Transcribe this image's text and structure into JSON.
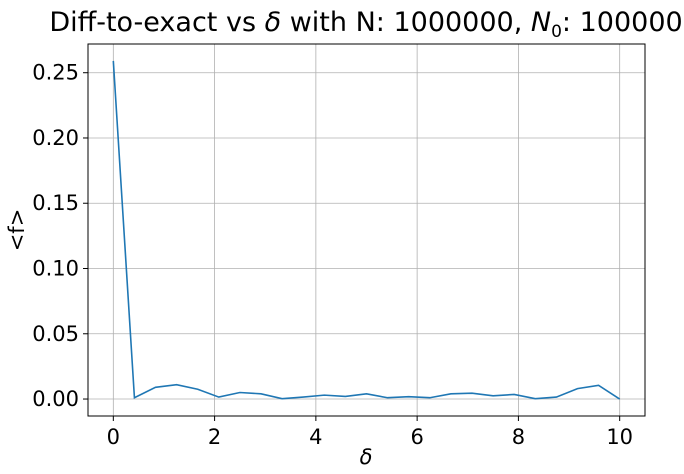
{
  "chart_data": {
    "type": "line",
    "title": "Diff-to-exact vs δ with N: 1000000, N₀: 100000",
    "title_parts": {
      "prefix": "Diff-to-exact vs ",
      "delta": "δ",
      "middle": " with N: 1000000, ",
      "n_symbol": "N",
      "n_subscript": "0",
      "suffix": ": 100000"
    },
    "xlabel": "δ",
    "ylabel": "<f>",
    "xlim": [
      -0.5,
      10.5
    ],
    "ylim": [
      -0.013,
      0.272
    ],
    "xticks": [
      0,
      2,
      4,
      6,
      8,
      10
    ],
    "xtick_labels": [
      "0",
      "2",
      "4",
      "6",
      "8",
      "10"
    ],
    "yticks": [
      0.0,
      0.05,
      0.1,
      0.15,
      0.2,
      0.25
    ],
    "ytick_labels": [
      "0.00",
      "0.05",
      "0.10",
      "0.15",
      "0.20",
      "0.25"
    ],
    "grid": true,
    "series": [
      {
        "color": "#1f77b4",
        "x": [
          0,
          0.417,
          0.833,
          1.25,
          1.667,
          2.083,
          2.5,
          2.917,
          3.333,
          3.75,
          4.167,
          4.583,
          5.0,
          5.417,
          5.833,
          6.25,
          6.667,
          7.083,
          7.5,
          7.917,
          8.333,
          8.75,
          9.167,
          9.583,
          10.0
        ],
        "y": [
          0.259,
          0.001,
          0.009,
          0.011,
          0.0075,
          0.0015,
          0.005,
          0.004,
          0.0003,
          0.0015,
          0.003,
          0.002,
          0.004,
          0.001,
          0.0018,
          0.001,
          0.004,
          0.0045,
          0.0025,
          0.0035,
          0.0003,
          0.0015,
          0.008,
          0.0105,
          0.0
        ]
      }
    ]
  }
}
